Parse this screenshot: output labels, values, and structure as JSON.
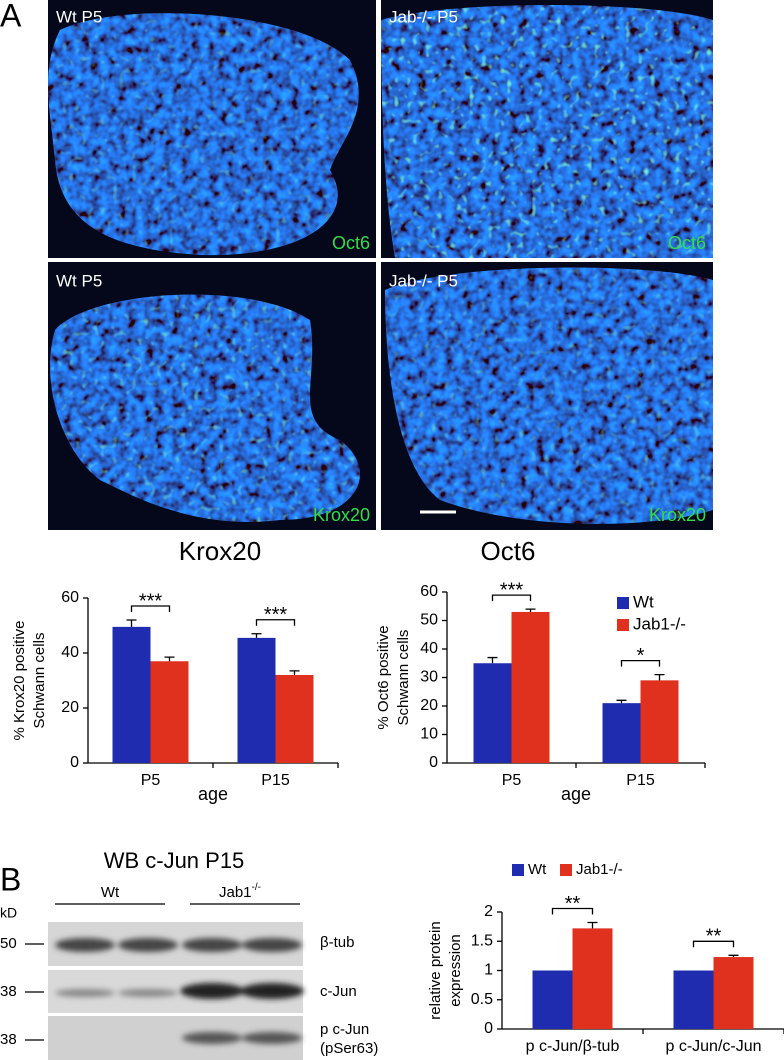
{
  "figure": {
    "panel_a": "A",
    "panel_b": "B",
    "images": [
      {
        "label": "Wt P5",
        "stain": "Oct6"
      },
      {
        "label": "Jab-/- P5",
        "stain": "Oct6"
      },
      {
        "label": "Wt P5",
        "stain": "Krox20"
      },
      {
        "label": "Jab-/- P5",
        "stain": "Krox20"
      }
    ]
  },
  "blot": {
    "title": "WB c-Jun P15",
    "groups": [
      {
        "label": "Wt"
      },
      {
        "label": "Jab1",
        "sup": "-/-"
      }
    ],
    "unit": "kD",
    "rows": [
      {
        "kd": "50",
        "label": [
          "β-tub"
        ]
      },
      {
        "kd": "38",
        "label": [
          "c-Jun"
        ]
      },
      {
        "kd": "38",
        "label": [
          "p c-Jun",
          "(pSer63)"
        ]
      }
    ]
  },
  "chart_data": [
    {
      "type": "bar",
      "title": "Krox20",
      "ylabel": [
        "% Krox20 positive",
        "Schwann cells"
      ],
      "xlabel": "age",
      "categories": [
        "P5",
        "P15"
      ],
      "series": [
        {
          "color": "#1f2cb0",
          "values": [
            49.5,
            45.5
          ],
          "errors": [
            2.5,
            1.5
          ]
        },
        {
          "color": "#e0301e",
          "values": [
            37,
            32
          ],
          "errors": [
            1.5,
            1.5
          ]
        }
      ],
      "significance": [
        "***",
        "***"
      ],
      "ylim": [
        0,
        60
      ],
      "yticks": [
        0,
        20,
        40,
        60
      ]
    },
    {
      "type": "bar",
      "title": "Oct6",
      "ylabel": [
        "% Oct6 positive",
        "Schwann cells"
      ],
      "xlabel": "age",
      "categories": [
        "P5",
        "P15"
      ],
      "series": [
        {
          "name": "Wt",
          "color": "#1f2cb0",
          "values": [
            35,
            21
          ],
          "errors": [
            2,
            1
          ]
        },
        {
          "name": "Jab1-/-",
          "color": "#e0301e",
          "values": [
            53,
            29
          ],
          "errors": [
            1,
            2
          ]
        }
      ],
      "significance": [
        "***",
        "*"
      ],
      "ylim": [
        0,
        60
      ],
      "yticks": [
        0,
        10,
        20,
        30,
        40,
        50,
        60
      ],
      "legend": "upper right"
    },
    {
      "type": "bar",
      "ylabel": [
        "relative protein",
        "expression"
      ],
      "categories": [
        "p c-Jun/β-tub",
        "p c-Jun/c-Jun"
      ],
      "series": [
        {
          "name": "Wt",
          "color": "#1f2cb0",
          "values": [
            1,
            1
          ]
        },
        {
          "name": "Jab1-/-",
          "color": "#e0301e",
          "values": [
            1.72,
            1.23
          ],
          "errors": [
            0.1,
            0.03
          ]
        }
      ],
      "significance": [
        "**",
        "**"
      ],
      "ylim": [
        0,
        2
      ],
      "yticks": [
        0,
        0.5,
        1,
        1.5,
        2
      ],
      "legend": "top"
    }
  ]
}
